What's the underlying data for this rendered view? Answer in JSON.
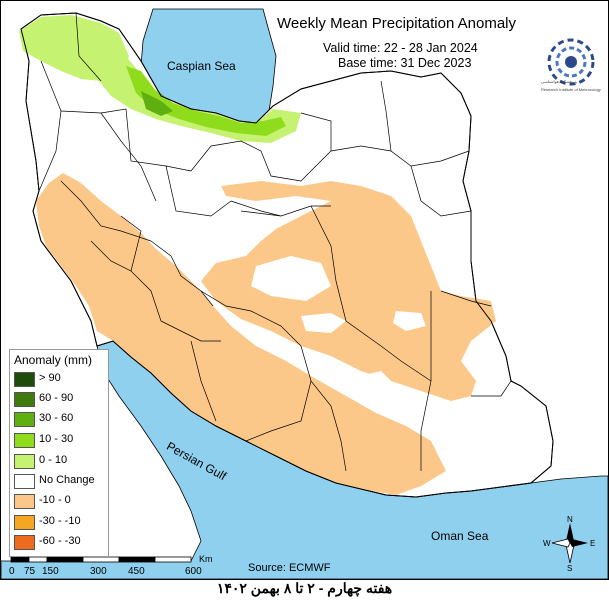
{
  "title": "Weekly Mean Precipitation Anomaly",
  "valid_time": "Valid time: 22 - 28  Jan 2024",
  "base_time": "Base time: 31 Dec 2023",
  "logo_text_1": "پژوهشکده هواشناسی",
  "logo_text_2": "Research Institute of Meteorology",
  "legend": {
    "title": "Anomaly (mm)",
    "items": [
      {
        "label": "> 90",
        "color": "#1e4d0b"
      },
      {
        "label": "60 - 90",
        "color": "#3f7a0d"
      },
      {
        "label": "30 - 60",
        "color": "#5fae12"
      },
      {
        "label": "10 - 30",
        "color": "#8edc1c"
      },
      {
        "label": "0 - 10",
        "color": "#c6f272"
      },
      {
        "label": "No Change",
        "color": "#ffffff"
      },
      {
        "label": "-10 - 0",
        "color": "#fbc88a"
      },
      {
        "label": "-30 - -10",
        "color": "#f5a623"
      },
      {
        "label": "-60 - -30",
        "color": "#ee6a1c"
      }
    ]
  },
  "seas": {
    "caspian": "Caspian Sea",
    "persian": "Persian Gulf",
    "oman": "Oman Sea"
  },
  "source": "Source: ECMWF",
  "scale": {
    "ticks": [
      "0",
      "75",
      "150",
      "300",
      "450",
      "600"
    ],
    "unit": "Km"
  },
  "compass": {
    "n": "N",
    "s": "S",
    "e": "E",
    "w": "W"
  },
  "caption": "هفته چهارم - ۲ تا ۸ بهمن ۱۴۰۲",
  "colors": {
    "water": "#8fd0ee",
    "dry": "#fbc88a",
    "wet_light": "#c6f272",
    "wet_mid": "#8edc1c",
    "wet_strong": "#5fae12"
  }
}
